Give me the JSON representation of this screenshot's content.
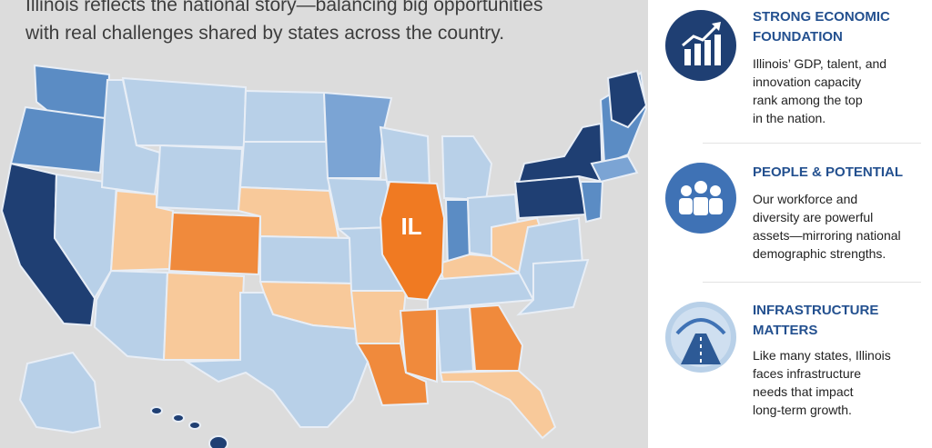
{
  "header": {
    "lines": [
      "Illinois reflects the national story—balancing big opportunities",
      "with real challenges shared by states across the country."
    ]
  },
  "map": {
    "highlight_label": "IL"
  },
  "cards": [
    {
      "title": [
        "STRONG ECONOMIC",
        "FOUNDATION"
      ],
      "body": [
        "Illinois’ GDP, talent, and",
        "innovation capacity",
        "rank among the top",
        "in the nation."
      ]
    },
    {
      "title": [
        "PEOPLE & POTENTIAL"
      ],
      "body": [
        "Our workforce and",
        "diversity are powerful",
        "assets—mirroring national",
        "demographic strengths."
      ]
    },
    {
      "title": [
        "INFRASTRUCTURE",
        "MATTERS"
      ],
      "body": [
        "Like many states, Illinois",
        "faces infrastructure",
        "needs that impact",
        "long-term growth."
      ]
    }
  ]
}
